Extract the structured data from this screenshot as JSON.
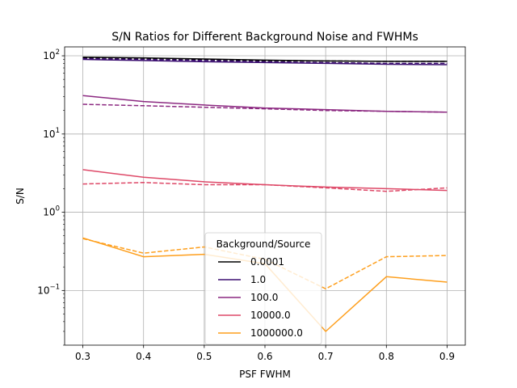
{
  "chart_data": {
    "type": "line",
    "title": "S/N Ratios for Different Background Noise and FWHMs",
    "xlabel": "PSF FWHM",
    "ylabel": "S/N",
    "xlim": [
      0.27,
      0.93
    ],
    "ylim": [
      0.02,
      130
    ],
    "yscale": "log",
    "grid": true,
    "x": [
      0.3,
      0.4,
      0.5,
      0.6,
      0.7,
      0.8,
      0.9
    ],
    "x_tick_labels": [
      "0.3",
      "0.4",
      "0.5",
      "0.6",
      "0.7",
      "0.8",
      "0.9"
    ],
    "y_ticks": [
      {
        "value": 0.1,
        "base": "10",
        "exp": "−1"
      },
      {
        "value": 1,
        "base": "10",
        "exp": "0"
      },
      {
        "value": 10,
        "base": "10",
        "exp": "1"
      },
      {
        "value": 100,
        "base": "10",
        "exp": "2"
      }
    ],
    "legend": {
      "title": "Background/Source",
      "position": "lower-center"
    },
    "series": [
      {
        "name": "0.0001",
        "color": "#000000",
        "solid": [
          96,
          94,
          91,
          88,
          86,
          85,
          85
        ],
        "dashed": [
          95,
          93,
          90,
          87,
          86,
          85,
          85
        ]
      },
      {
        "name": "1.0",
        "color": "#3b0f70",
        "solid": [
          90,
          87,
          84,
          82,
          80,
          78,
          77
        ],
        "dashed": [
          92,
          90,
          87,
          84,
          82,
          80,
          80
        ]
      },
      {
        "name": "100.0",
        "color": "#8c2981",
        "solid": [
          31,
          26,
          23.5,
          21.5,
          20.5,
          19.5,
          19
        ],
        "dashed": [
          24,
          23,
          22,
          21,
          20,
          19.5,
          19
        ]
      },
      {
        "name": "10000.0",
        "color": "#de4968",
        "solid": [
          3.5,
          2.8,
          2.45,
          2.25,
          2.1,
          2.0,
          1.9
        ],
        "dashed": [
          2.3,
          2.4,
          2.25,
          2.25,
          2.05,
          1.85,
          2.05
        ]
      },
      {
        "name": "1000000.0",
        "color": "#fe9f1d",
        "solid": [
          0.47,
          0.27,
          0.29,
          0.22,
          0.03,
          0.15,
          0.128
        ],
        "dashed": [
          0.46,
          0.3,
          0.36,
          0.25,
          0.105,
          0.27,
          0.28
        ]
      }
    ]
  }
}
